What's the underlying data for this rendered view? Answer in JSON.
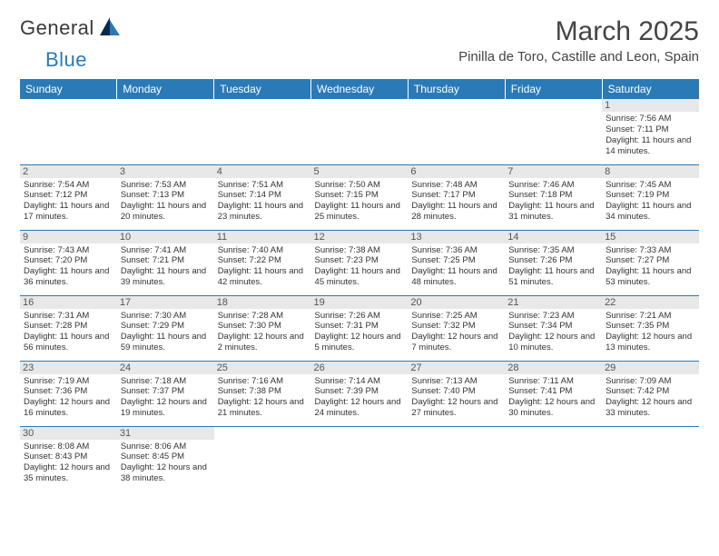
{
  "brand": {
    "name1": "General",
    "name2": "Blue"
  },
  "title": "March 2025",
  "location": "Pinilla de Toro, Castille and Leon, Spain",
  "colors": {
    "header_bg": "#2a7ab8",
    "header_fg": "#ffffff",
    "daynum_bg": "#e8e8e8",
    "border": "#2a7ab8"
  },
  "day_headers": [
    "Sunday",
    "Monday",
    "Tuesday",
    "Wednesday",
    "Thursday",
    "Friday",
    "Saturday"
  ],
  "weeks": [
    [
      {
        "n": "",
        "sr": "",
        "ss": "",
        "dl": ""
      },
      {
        "n": "",
        "sr": "",
        "ss": "",
        "dl": ""
      },
      {
        "n": "",
        "sr": "",
        "ss": "",
        "dl": ""
      },
      {
        "n": "",
        "sr": "",
        "ss": "",
        "dl": ""
      },
      {
        "n": "",
        "sr": "",
        "ss": "",
        "dl": ""
      },
      {
        "n": "",
        "sr": "",
        "ss": "",
        "dl": ""
      },
      {
        "n": "1",
        "sr": "Sunrise: 7:56 AM",
        "ss": "Sunset: 7:11 PM",
        "dl": "Daylight: 11 hours and 14 minutes."
      }
    ],
    [
      {
        "n": "2",
        "sr": "Sunrise: 7:54 AM",
        "ss": "Sunset: 7:12 PM",
        "dl": "Daylight: 11 hours and 17 minutes."
      },
      {
        "n": "3",
        "sr": "Sunrise: 7:53 AM",
        "ss": "Sunset: 7:13 PM",
        "dl": "Daylight: 11 hours and 20 minutes."
      },
      {
        "n": "4",
        "sr": "Sunrise: 7:51 AM",
        "ss": "Sunset: 7:14 PM",
        "dl": "Daylight: 11 hours and 23 minutes."
      },
      {
        "n": "5",
        "sr": "Sunrise: 7:50 AM",
        "ss": "Sunset: 7:15 PM",
        "dl": "Daylight: 11 hours and 25 minutes."
      },
      {
        "n": "6",
        "sr": "Sunrise: 7:48 AM",
        "ss": "Sunset: 7:17 PM",
        "dl": "Daylight: 11 hours and 28 minutes."
      },
      {
        "n": "7",
        "sr": "Sunrise: 7:46 AM",
        "ss": "Sunset: 7:18 PM",
        "dl": "Daylight: 11 hours and 31 minutes."
      },
      {
        "n": "8",
        "sr": "Sunrise: 7:45 AM",
        "ss": "Sunset: 7:19 PM",
        "dl": "Daylight: 11 hours and 34 minutes."
      }
    ],
    [
      {
        "n": "9",
        "sr": "Sunrise: 7:43 AM",
        "ss": "Sunset: 7:20 PM",
        "dl": "Daylight: 11 hours and 36 minutes."
      },
      {
        "n": "10",
        "sr": "Sunrise: 7:41 AM",
        "ss": "Sunset: 7:21 PM",
        "dl": "Daylight: 11 hours and 39 minutes."
      },
      {
        "n": "11",
        "sr": "Sunrise: 7:40 AM",
        "ss": "Sunset: 7:22 PM",
        "dl": "Daylight: 11 hours and 42 minutes."
      },
      {
        "n": "12",
        "sr": "Sunrise: 7:38 AM",
        "ss": "Sunset: 7:23 PM",
        "dl": "Daylight: 11 hours and 45 minutes."
      },
      {
        "n": "13",
        "sr": "Sunrise: 7:36 AM",
        "ss": "Sunset: 7:25 PM",
        "dl": "Daylight: 11 hours and 48 minutes."
      },
      {
        "n": "14",
        "sr": "Sunrise: 7:35 AM",
        "ss": "Sunset: 7:26 PM",
        "dl": "Daylight: 11 hours and 51 minutes."
      },
      {
        "n": "15",
        "sr": "Sunrise: 7:33 AM",
        "ss": "Sunset: 7:27 PM",
        "dl": "Daylight: 11 hours and 53 minutes."
      }
    ],
    [
      {
        "n": "16",
        "sr": "Sunrise: 7:31 AM",
        "ss": "Sunset: 7:28 PM",
        "dl": "Daylight: 11 hours and 56 minutes."
      },
      {
        "n": "17",
        "sr": "Sunrise: 7:30 AM",
        "ss": "Sunset: 7:29 PM",
        "dl": "Daylight: 11 hours and 59 minutes."
      },
      {
        "n": "18",
        "sr": "Sunrise: 7:28 AM",
        "ss": "Sunset: 7:30 PM",
        "dl": "Daylight: 12 hours and 2 minutes."
      },
      {
        "n": "19",
        "sr": "Sunrise: 7:26 AM",
        "ss": "Sunset: 7:31 PM",
        "dl": "Daylight: 12 hours and 5 minutes."
      },
      {
        "n": "20",
        "sr": "Sunrise: 7:25 AM",
        "ss": "Sunset: 7:32 PM",
        "dl": "Daylight: 12 hours and 7 minutes."
      },
      {
        "n": "21",
        "sr": "Sunrise: 7:23 AM",
        "ss": "Sunset: 7:34 PM",
        "dl": "Daylight: 12 hours and 10 minutes."
      },
      {
        "n": "22",
        "sr": "Sunrise: 7:21 AM",
        "ss": "Sunset: 7:35 PM",
        "dl": "Daylight: 12 hours and 13 minutes."
      }
    ],
    [
      {
        "n": "23",
        "sr": "Sunrise: 7:19 AM",
        "ss": "Sunset: 7:36 PM",
        "dl": "Daylight: 12 hours and 16 minutes."
      },
      {
        "n": "24",
        "sr": "Sunrise: 7:18 AM",
        "ss": "Sunset: 7:37 PM",
        "dl": "Daylight: 12 hours and 19 minutes."
      },
      {
        "n": "25",
        "sr": "Sunrise: 7:16 AM",
        "ss": "Sunset: 7:38 PM",
        "dl": "Daylight: 12 hours and 21 minutes."
      },
      {
        "n": "26",
        "sr": "Sunrise: 7:14 AM",
        "ss": "Sunset: 7:39 PM",
        "dl": "Daylight: 12 hours and 24 minutes."
      },
      {
        "n": "27",
        "sr": "Sunrise: 7:13 AM",
        "ss": "Sunset: 7:40 PM",
        "dl": "Daylight: 12 hours and 27 minutes."
      },
      {
        "n": "28",
        "sr": "Sunrise: 7:11 AM",
        "ss": "Sunset: 7:41 PM",
        "dl": "Daylight: 12 hours and 30 minutes."
      },
      {
        "n": "29",
        "sr": "Sunrise: 7:09 AM",
        "ss": "Sunset: 7:42 PM",
        "dl": "Daylight: 12 hours and 33 minutes."
      }
    ],
    [
      {
        "n": "30",
        "sr": "Sunrise: 8:08 AM",
        "ss": "Sunset: 8:43 PM",
        "dl": "Daylight: 12 hours and 35 minutes."
      },
      {
        "n": "31",
        "sr": "Sunrise: 8:06 AM",
        "ss": "Sunset: 8:45 PM",
        "dl": "Daylight: 12 hours and 38 minutes."
      },
      {
        "n": "",
        "sr": "",
        "ss": "",
        "dl": ""
      },
      {
        "n": "",
        "sr": "",
        "ss": "",
        "dl": ""
      },
      {
        "n": "",
        "sr": "",
        "ss": "",
        "dl": ""
      },
      {
        "n": "",
        "sr": "",
        "ss": "",
        "dl": ""
      },
      {
        "n": "",
        "sr": "",
        "ss": "",
        "dl": ""
      }
    ]
  ]
}
